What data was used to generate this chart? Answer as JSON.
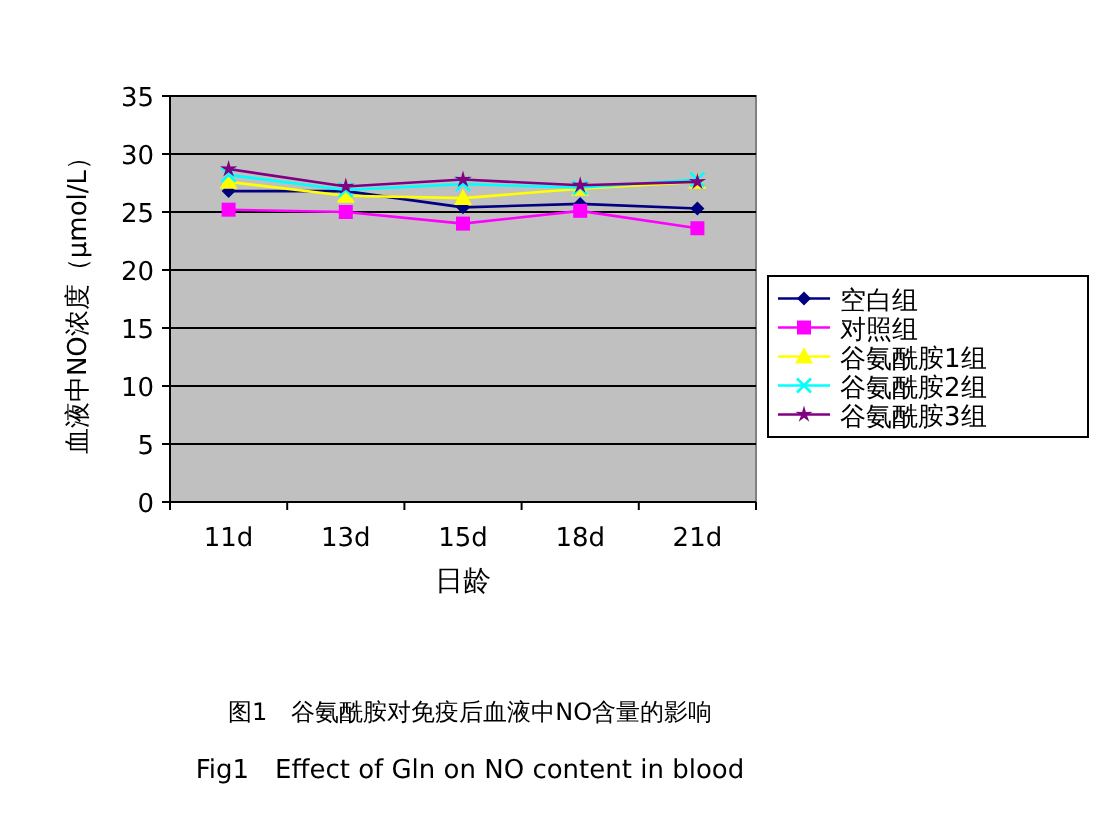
{
  "chart_data": {
    "type": "line",
    "xlabel": "日龄",
    "ylabel": "血液中NO浓度（μmol/L）",
    "categories": [
      "11d",
      "13d",
      "15d",
      "18d",
      "21d"
    ],
    "series": [
      {
        "name": "空白组",
        "color": "#000080",
        "marker": "diamond",
        "values": [
          26.8,
          26.8,
          25.4,
          25.7,
          25.3
        ]
      },
      {
        "name": "对照组",
        "color": "#ff00ff",
        "marker": "square",
        "values": [
          25.2,
          25.0,
          24.0,
          25.1,
          23.6
        ]
      },
      {
        "name": "谷氨酰胺1组",
        "color": "#ffff00",
        "marker": "triangle",
        "values": [
          27.6,
          26.4,
          26.2,
          27.0,
          27.6
        ]
      },
      {
        "name": "谷氨酰胺2组",
        "color": "#00ffff",
        "marker": "cross",
        "values": [
          28.2,
          26.9,
          27.4,
          27.1,
          27.8
        ]
      },
      {
        "name": "谷氨酰胺3组",
        "color": "#800080",
        "marker": "star",
        "values": [
          28.7,
          27.2,
          27.8,
          27.3,
          27.6
        ]
      }
    ],
    "ylim": [
      0,
      35
    ],
    "yticks": [
      0,
      5,
      10,
      15,
      20,
      25,
      30,
      35
    ],
    "grid": "y",
    "legend": "right",
    "annotations": [
      "图1　谷氨酰胺对免疫后血液中NO含量的影响",
      "Fig1　Effect of Gln on NO content in blood"
    ]
  }
}
